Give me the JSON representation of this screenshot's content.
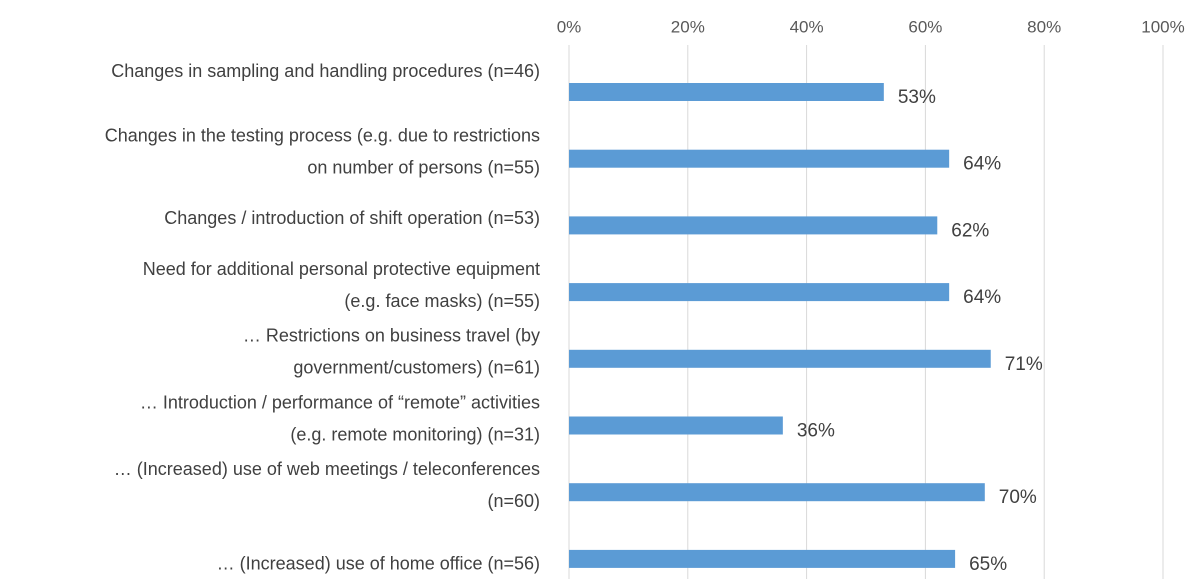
{
  "chart_data": {
    "type": "bar",
    "orientation": "horizontal",
    "categories": [
      [
        "Changes in sampling and handling procedures (n=46)"
      ],
      [
        "Changes in the testing process (e.g. due to restrictions",
        "on number of persons (n=55)"
      ],
      [
        "Changes / introduction of shift operation (n=53)"
      ],
      [
        "Need for additional personal protective equipment",
        "(e.g. face masks) (n=55)"
      ],
      [
        "… Restrictions on business travel (by",
        "government/customers) (n=61)"
      ],
      [
        "… Introduction / performance of “remote” activities",
        "(e.g. remote monitoring) (n=31)"
      ],
      [
        "… (Increased) use of web meetings / teleconferences",
        "(n=60)"
      ],
      [
        "… (Increased) use of home office (n=56)"
      ]
    ],
    "values": [
      53,
      64,
      62,
      64,
      71,
      36,
      70,
      65
    ],
    "value_labels": [
      "53%",
      "64%",
      "62%",
      "64%",
      "71%",
      "36%",
      "70%",
      "65%"
    ],
    "color": "#5b9bd5",
    "xlim": [
      0,
      100
    ],
    "xticks": [
      {
        "value": 0,
        "label": "0%"
      },
      {
        "value": 20,
        "label": "20%"
      },
      {
        "value": 40,
        "label": "40%"
      },
      {
        "value": 60,
        "label": "60%"
      },
      {
        "value": 80,
        "label": "80%"
      },
      {
        "value": 100,
        "label": "100%"
      }
    ],
    "grid": true
  }
}
